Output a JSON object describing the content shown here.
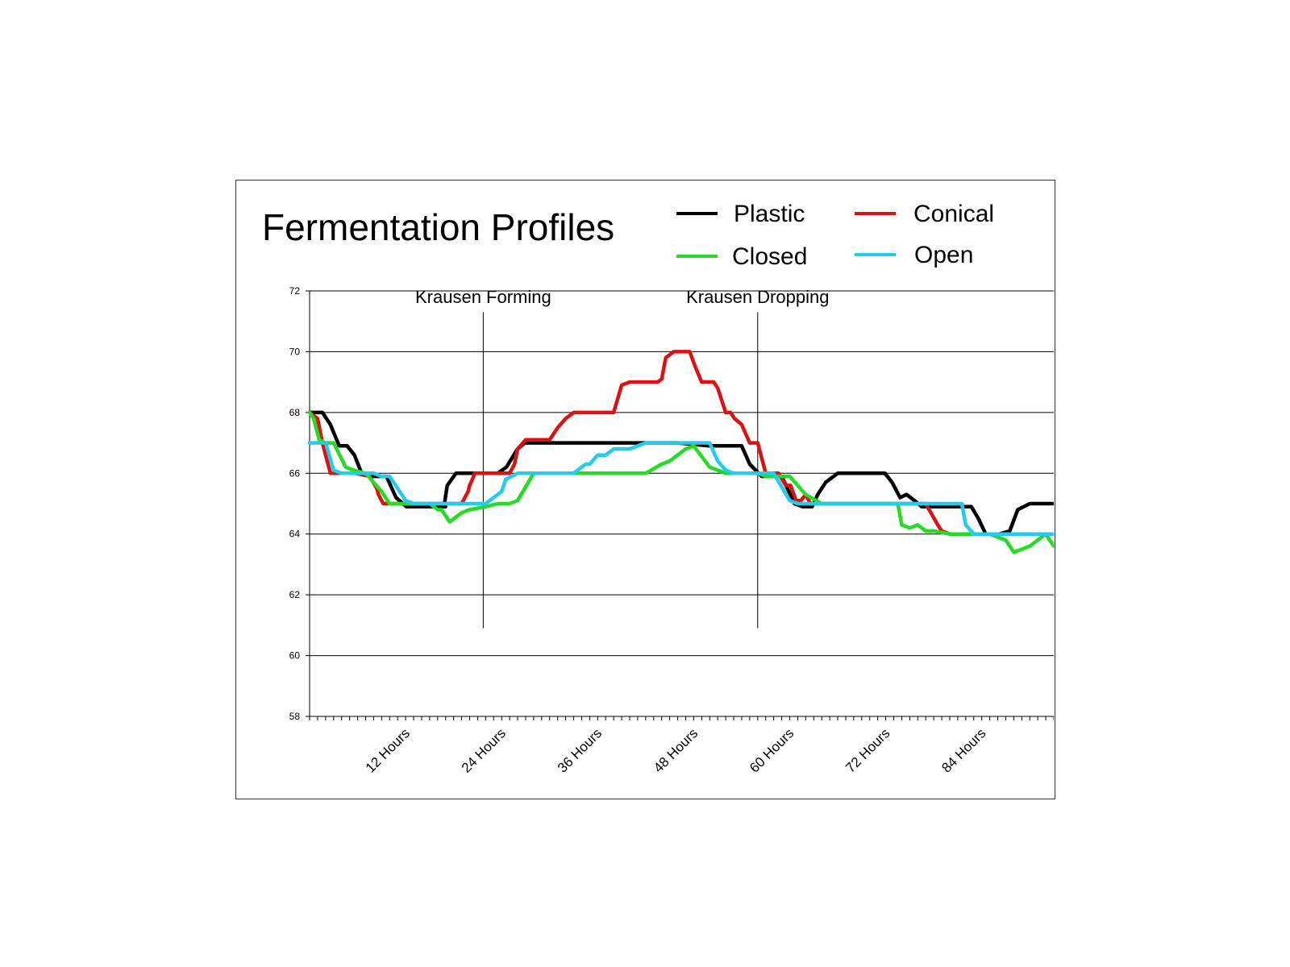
{
  "chart_data": {
    "type": "line",
    "title": "Fermentation Profiles",
    "xlabel": "",
    "ylabel": "",
    "ylim": [
      58,
      72
    ],
    "yticks": [
      58,
      60,
      62,
      64,
      66,
      68,
      70,
      72
    ],
    "xlim": [
      0,
      93
    ],
    "xticks": [
      {
        "x": 12,
        "label": "12 Hours"
      },
      {
        "x": 24,
        "label": "24 Hours"
      },
      {
        "x": 36,
        "label": "36 Hours"
      },
      {
        "x": 48,
        "label": "48 Hours"
      },
      {
        "x": 60,
        "label": "60 Hours"
      },
      {
        "x": 72,
        "label": "72 Hours"
      },
      {
        "x": 84,
        "label": "84 Hours"
      }
    ],
    "grid": true,
    "legend_position": "top-right",
    "annotations": [
      {
        "label": "Krausen Forming",
        "x": 21.7
      },
      {
        "label": "Krausen Dropping",
        "x": 56
      }
    ],
    "series": [
      {
        "name": "Plastic",
        "color": "#000000",
        "x": [
          0,
          1.6,
          2.6,
          3.7,
          4.7,
          5.6,
          6.5,
          7.6,
          8.6,
          9.6,
          10.8,
          12.1,
          13.4,
          15,
          17,
          16.8,
          17.2,
          18.3,
          19,
          21,
          22.4,
          23.5,
          24.6,
          26,
          26.9,
          30,
          34,
          38,
          42,
          46,
          50,
          52,
          53,
          54,
          55,
          56.5,
          58,
          59,
          60.6,
          61.6,
          62.5,
          62.8,
          63.5,
          64.5,
          66,
          68,
          70,
          71,
          71.9,
          72.8,
          73.8,
          74.6,
          75.6,
          76.5,
          77.7,
          79,
          80,
          81,
          82.2,
          82.7,
          83.6,
          84.5,
          85.7,
          86.2,
          87.5,
          88.5,
          90,
          93
        ],
        "values": [
          68,
          68,
          67.6,
          66.9,
          66.9,
          66.6,
          66,
          65.9,
          65.9,
          65.9,
          65.2,
          64.9,
          64.9,
          64.9,
          64.9,
          64.9,
          65.6,
          66,
          66,
          66,
          66,
          66,
          66.2,
          66.8,
          67,
          67,
          67,
          67,
          67,
          67,
          66.9,
          66.9,
          66.9,
          66.9,
          66.3,
          65.9,
          65.9,
          65.9,
          65,
          64.9,
          64.9,
          64.9,
          65.3,
          65.7,
          66,
          66,
          66,
          66,
          66,
          65.7,
          65.2,
          65.3,
          65.1,
          64.9,
          64.9,
          64.9,
          64.9,
          64.9,
          64.9,
          64.9,
          64.5,
          64,
          64,
          64,
          64.1,
          64.8,
          65,
          65
        ]
      },
      {
        "name": "Conical",
        "color": "#dd1111",
        "x": [
          0,
          1,
          1.6,
          2.6,
          3.3,
          4,
          5.7,
          7.5,
          8.4,
          8.6,
          9.2,
          10.6,
          12.1,
          15,
          17.5,
          18,
          19,
          19.8,
          20,
          20.5,
          20.6,
          21.2,
          22,
          23.5,
          25,
          25.6,
          26,
          27,
          28.5,
          29.5,
          30,
          31,
          32,
          33,
          34.5,
          35,
          36,
          37,
          38,
          39,
          40,
          40.5,
          42,
          43,
          43.5,
          44,
          44.5,
          45.5,
          46.5,
          47.5,
          48.2,
          49,
          49.5,
          50.5,
          51,
          52,
          52.6,
          53.1,
          54,
          55,
          55.6,
          56,
          57,
          57.7,
          58.6,
          59.5,
          60.1,
          60.8,
          61.4,
          62,
          62.6,
          63.4,
          64,
          65,
          70,
          73,
          75,
          77,
          78.5,
          79,
          80,
          81,
          81.5,
          82,
          83,
          84,
          93
        ],
        "values": [
          68,
          67.8,
          67,
          66,
          66,
          66,
          66,
          65.9,
          65.5,
          65.3,
          65,
          65,
          65,
          65,
          65,
          65,
          65,
          65.4,
          65.6,
          65.9,
          66,
          66,
          66,
          66,
          66,
          66.3,
          66.8,
          67.1,
          67.1,
          67.1,
          67.1,
          67.5,
          67.8,
          68,
          68,
          68,
          68,
          68,
          68,
          68.9,
          69,
          69,
          69,
          69,
          69,
          69.1,
          69.8,
          70,
          70,
          70,
          69.5,
          69,
          69,
          69,
          68.8,
          68,
          68,
          67.8,
          67.6,
          67,
          67,
          67,
          66,
          66,
          66,
          65.6,
          65.6,
          65.1,
          65.1,
          65.3,
          65,
          65,
          65,
          65,
          65,
          65,
          65,
          65,
          64.3,
          64.1,
          64,
          64,
          64,
          64,
          64,
          64,
          64
        ]
      },
      {
        "name": "Closed",
        "color": "#22dd22",
        "x": [
          0,
          0.5,
          1.2,
          2,
          3,
          4.5,
          5.5,
          7,
          8,
          9,
          10,
          12,
          15,
          16,
          16.5,
          17.5,
          19,
          20,
          22,
          23.5,
          24,
          25,
          26,
          28,
          30,
          32,
          35,
          38,
          40,
          42,
          44,
          45,
          46,
          47,
          48,
          50,
          52,
          53,
          54,
          55,
          55.3,
          56,
          57,
          59,
          59.5,
          60,
          62,
          64,
          66,
          68,
          70,
          71,
          72,
          73,
          73.5,
          74,
          75,
          76,
          77,
          78,
          80,
          82,
          83,
          84,
          85,
          86,
          87,
          88,
          90,
          92,
          93
        ],
        "values": [
          68,
          67.8,
          67.1,
          67,
          67,
          66.2,
          66.1,
          66,
          65.7,
          65.4,
          65,
          65,
          65,
          64.8,
          64.8,
          64.4,
          64.7,
          64.8,
          64.9,
          65,
          65,
          65,
          65.1,
          66,
          66,
          66,
          66,
          66,
          66,
          66,
          66.3,
          66.4,
          66.6,
          66.8,
          66.9,
          66.2,
          66,
          66,
          66,
          66,
          66,
          66,
          65.9,
          65.9,
          65.9,
          65.9,
          65.3,
          65,
          65,
          65,
          65,
          65,
          65,
          65,
          65,
          64.3,
          64.2,
          64.3,
          64.1,
          64.1,
          64,
          64,
          64,
          64,
          64,
          63.9,
          63.8,
          63.4,
          63.6,
          64,
          63.6
        ]
      },
      {
        "name": "Open",
        "color": "#22ccee",
        "x": [
          0,
          1.3,
          2,
          3,
          4,
          5,
          6,
          7,
          8,
          9,
          10,
          11,
          12,
          13,
          16,
          20,
          22,
          24,
          24.5,
          26,
          28,
          30,
          32,
          33,
          34.5,
          35,
          36,
          37,
          38,
          39,
          40,
          42,
          44,
          46,
          48,
          50,
          51,
          52,
          53,
          55,
          56.5,
          58,
          60,
          61,
          62,
          63,
          64,
          66,
          68,
          70,
          72,
          74,
          76,
          78,
          80,
          81.5,
          82,
          83,
          84,
          86,
          88,
          90,
          92,
          93
        ],
        "values": [
          67,
          67,
          67,
          66.1,
          66,
          66,
          66,
          66,
          66,
          65.9,
          65.9,
          65.5,
          65.1,
          65,
          65,
          65,
          65,
          65.4,
          65.8,
          66,
          66,
          66,
          66,
          66,
          66.3,
          66.3,
          66.6,
          66.6,
          66.8,
          66.8,
          66.8,
          67,
          67,
          67,
          67,
          67,
          66.4,
          66.1,
          66,
          66,
          66,
          66,
          65.1,
          65,
          65,
          65,
          65,
          65,
          65,
          65,
          65,
          65,
          65,
          65,
          65,
          65,
          64.3,
          64,
          64,
          64,
          64,
          64,
          64,
          64
        ]
      }
    ]
  }
}
